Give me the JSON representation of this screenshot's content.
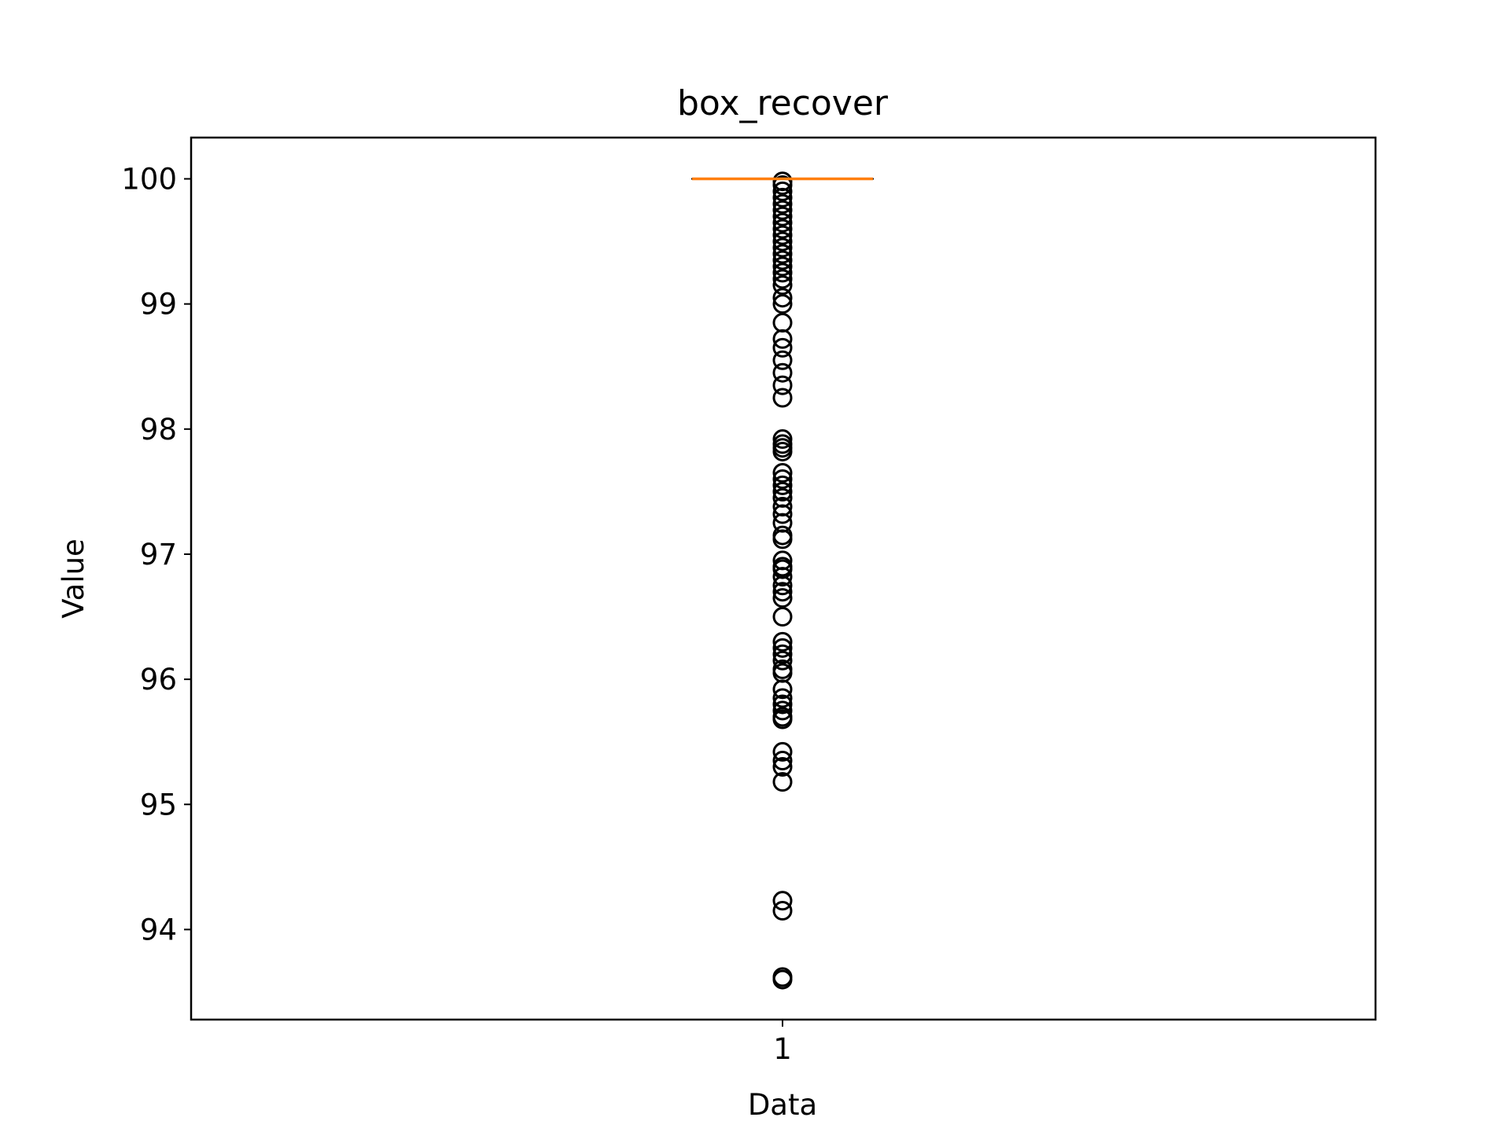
{
  "chart_data": {
    "type": "box",
    "title": "box_recover",
    "xlabel": "Data",
    "ylabel": "Value",
    "categories": [
      "1"
    ],
    "ylim": [
      93.28,
      100.33
    ],
    "yticks": [
      94,
      95,
      96,
      97,
      98,
      99,
      100
    ],
    "box": {
      "median": 100.0,
      "q1": 100.0,
      "q3": 100.0,
      "whisker_low": 100.0,
      "whisker_high": 100.0
    },
    "outliers": [
      99.98,
      99.95,
      99.9,
      99.85,
      99.8,
      99.75,
      99.7,
      99.65,
      99.6,
      99.55,
      99.5,
      99.45,
      99.4,
      99.35,
      99.3,
      99.25,
      99.2,
      99.15,
      99.05,
      99.0,
      98.85,
      98.72,
      98.65,
      98.55,
      98.45,
      98.35,
      98.25,
      97.92,
      97.88,
      97.85,
      97.82,
      97.65,
      97.6,
      97.55,
      97.5,
      97.45,
      97.38,
      97.32,
      97.25,
      97.15,
      97.12,
      96.95,
      96.9,
      96.88,
      96.82,
      96.75,
      96.7,
      96.65,
      96.5,
      96.3,
      96.25,
      96.2,
      96.15,
      96.08,
      96.05,
      95.92,
      95.85,
      95.8,
      95.75,
      95.7,
      95.68,
      95.42,
      95.35,
      95.3,
      95.18,
      94.23,
      94.15,
      93.62,
      93.6
    ],
    "colors": {
      "median": "#ff7f0e",
      "box": "#000000",
      "outlier": "#000000",
      "background": "#ffffff"
    }
  }
}
